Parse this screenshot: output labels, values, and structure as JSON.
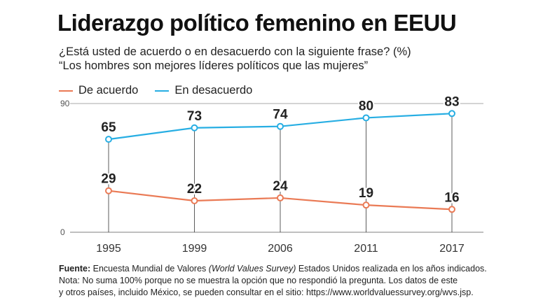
{
  "title": "Liderazgo político femenino en EEUU",
  "subtitle_line1": "¿Está usted de acuerdo o en desacuerdo con la siguiente frase? (%)",
  "subtitle_line2": "“Los hombres son mejores líderes políticos que las mujeres”",
  "colors": {
    "agree": "#ea7a55",
    "disagree": "#27aee3",
    "axis": "#aaaaaa",
    "grid": "#333333"
  },
  "chart_data": {
    "type": "line",
    "categories": [
      "1995",
      "1999",
      "2006",
      "2011",
      "2017"
    ],
    "series": [
      {
        "name": "De acuerdo",
        "values": [
          29,
          22,
          24,
          19,
          16
        ]
      },
      {
        "name": "En desacuerdo",
        "values": [
          65,
          73,
          74,
          80,
          83
        ]
      }
    ],
    "ylim": [
      0,
      90
    ],
    "yticks": [
      "0",
      "90"
    ],
    "legend_position": "top-left",
    "grid": "vertical"
  },
  "footer": {
    "source_label": "Fuente:",
    "source_text_a": "Encuesta Mundial de Valores",
    "source_text_italic": "(World Values Survey)",
    "source_text_b": "Estados Unidos realizada en los años indicados.",
    "note_line1": "Nota: No suma 100% porque no se muestra la opción que no respondió la pregunta. Los datos de este",
    "note_line2": "y otros países, incluido México, se pueden consultar en el sitio: https://www.worldvaluessurvey.org/wvs.jsp."
  }
}
